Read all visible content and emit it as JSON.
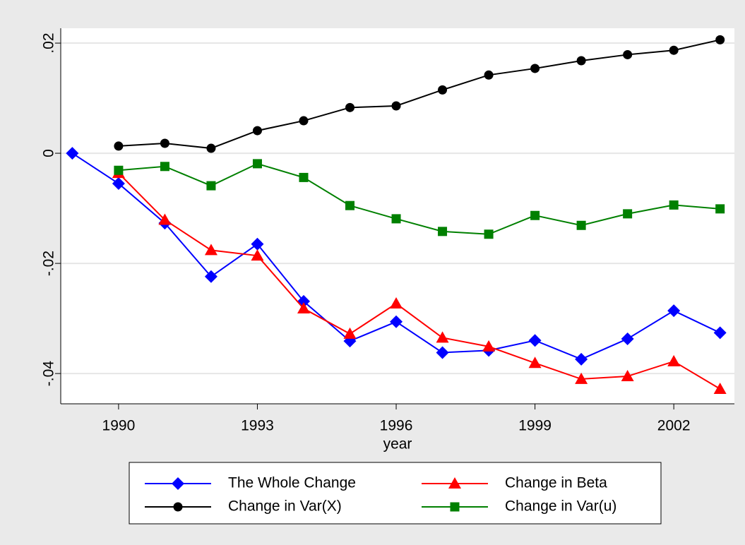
{
  "chart_data": {
    "type": "line",
    "x_label": "year",
    "x": [
      1989,
      1990,
      1991,
      1992,
      1993,
      1994,
      1995,
      1996,
      1997,
      1998,
      1999,
      2000,
      2001,
      2002,
      2003
    ],
    "xlim": [
      1988.75,
      2003.31
    ],
    "xticks": [
      1990,
      1993,
      1996,
      1999,
      2002
    ],
    "ylim": [
      -0.0455,
      0.0227
    ],
    "yticks": [
      {
        "value": 0.02,
        "label": ".02"
      },
      0,
      {
        "value": -0.02,
        "label": "-.02"
      },
      {
        "value": -0.04,
        "label": "-.04"
      }
    ],
    "grid": true,
    "legend_position": "bottom",
    "series": [
      {
        "name": "The Whole Change",
        "color": "#0000ff",
        "marker": "diamond",
        "values": [
          0,
          -0.0055,
          -0.0127,
          -0.0224,
          -0.0165,
          -0.0269,
          -0.0341,
          -0.0306,
          -0.0362,
          -0.0358,
          -0.034,
          -0.0374,
          -0.0337,
          -0.0286,
          -0.0326
        ]
      },
      {
        "name": "Change in Beta",
        "color": "#ff0000",
        "marker": "triangle",
        "values": [
          null,
          -0.0036,
          -0.0121,
          -0.0176,
          -0.0186,
          -0.0282,
          -0.0328,
          -0.0273,
          -0.0335,
          -0.0351,
          -0.0381,
          -0.041,
          -0.0405,
          -0.0378,
          -0.0428
        ]
      },
      {
        "name": "Change in Var(X)",
        "color": "#000000",
        "marker": "circle",
        "values": [
          null,
          0.0013,
          0.0018,
          0.0009,
          0.0041,
          0.0059,
          0.0083,
          0.0086,
          0.0115,
          0.0142,
          0.0154,
          0.0168,
          0.0179,
          0.0187,
          0.0206
        ]
      },
      {
        "name": "Change in Var(u)",
        "color": "#008000",
        "marker": "square",
        "values": [
          null,
          -0.0031,
          -0.0024,
          -0.0059,
          -0.0019,
          -0.0044,
          -0.0095,
          -0.0119,
          -0.0142,
          -0.0147,
          -0.0113,
          -0.0131,
          -0.011,
          -0.0094,
          -0.0101
        ]
      }
    ]
  }
}
